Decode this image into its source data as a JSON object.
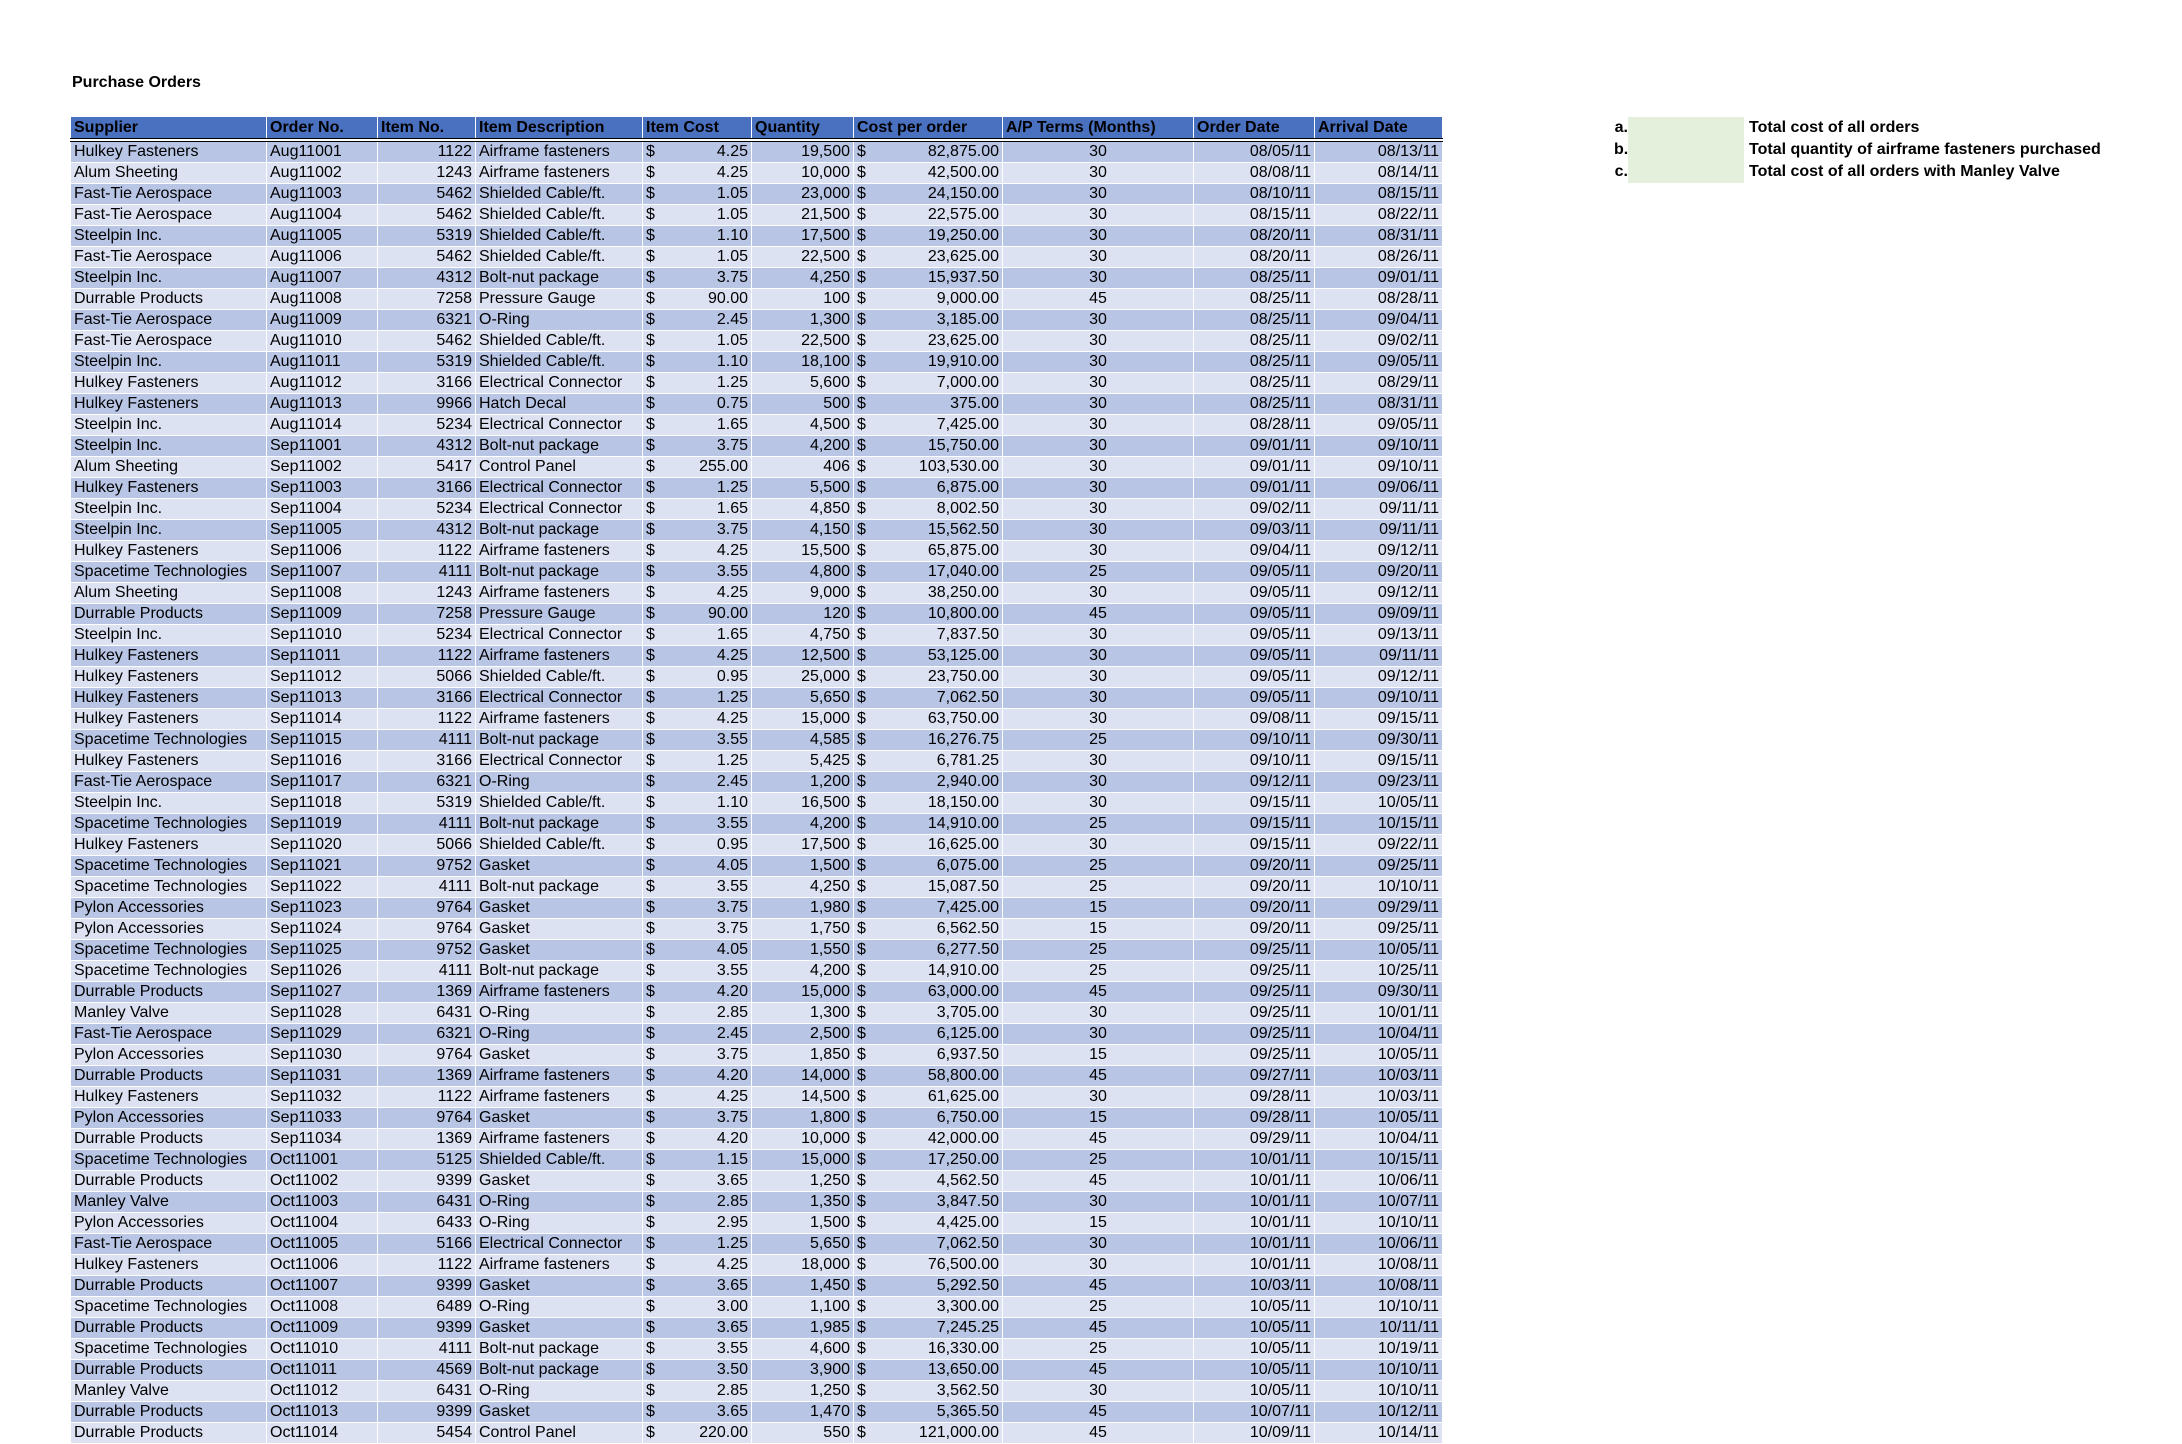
{
  "title": "Purchase Orders",
  "colors": {
    "header": "#4a70c0",
    "row_dark": "#b8c5e5",
    "row_light": "#dce2f2",
    "answer_box": "#e4efdc"
  },
  "columns": [
    "Supplier",
    "Order No.",
    "Item No.",
    "Item Description",
    "Item Cost",
    "Quantity",
    "Cost per order",
    "A/P Terms (Months)",
    "Order Date",
    "Arrival Date"
  ],
  "currency_symbol": "$",
  "rows": [
    [
      "Hulkey Fasteners",
      "Aug11001",
      "1122",
      "Airframe fasteners",
      "4.25",
      "19,500",
      "82,875.00",
      "30",
      "08/05/11",
      "08/13/11"
    ],
    [
      "Alum Sheeting",
      "Aug11002",
      "1243",
      "Airframe fasteners",
      "4.25",
      "10,000",
      "42,500.00",
      "30",
      "08/08/11",
      "08/14/11"
    ],
    [
      "Fast-Tie Aerospace",
      "Aug11003",
      "5462",
      "Shielded Cable/ft.",
      "1.05",
      "23,000",
      "24,150.00",
      "30",
      "08/10/11",
      "08/15/11"
    ],
    [
      "Fast-Tie Aerospace",
      "Aug11004",
      "5462",
      "Shielded Cable/ft.",
      "1.05",
      "21,500",
      "22,575.00",
      "30",
      "08/15/11",
      "08/22/11"
    ],
    [
      "Steelpin Inc.",
      "Aug11005",
      "5319",
      "Shielded Cable/ft.",
      "1.10",
      "17,500",
      "19,250.00",
      "30",
      "08/20/11",
      "08/31/11"
    ],
    [
      "Fast-Tie Aerospace",
      "Aug11006",
      "5462",
      "Shielded Cable/ft.",
      "1.05",
      "22,500",
      "23,625.00",
      "30",
      "08/20/11",
      "08/26/11"
    ],
    [
      "Steelpin Inc.",
      "Aug11007",
      "4312",
      "Bolt-nut package",
      "3.75",
      "4,250",
      "15,937.50",
      "30",
      "08/25/11",
      "09/01/11"
    ],
    [
      "Durrable Products",
      "Aug11008",
      "7258",
      "Pressure Gauge",
      "90.00",
      "100",
      "9,000.00",
      "45",
      "08/25/11",
      "08/28/11"
    ],
    [
      "Fast-Tie Aerospace",
      "Aug11009",
      "6321",
      "O-Ring",
      "2.45",
      "1,300",
      "3,185.00",
      "30",
      "08/25/11",
      "09/04/11"
    ],
    [
      "Fast-Tie Aerospace",
      "Aug11010",
      "5462",
      "Shielded Cable/ft.",
      "1.05",
      "22,500",
      "23,625.00",
      "30",
      "08/25/11",
      "09/02/11"
    ],
    [
      "Steelpin Inc.",
      "Aug11011",
      "5319",
      "Shielded Cable/ft.",
      "1.10",
      "18,100",
      "19,910.00",
      "30",
      "08/25/11",
      "09/05/11"
    ],
    [
      "Hulkey Fasteners",
      "Aug11012",
      "3166",
      "Electrical Connector",
      "1.25",
      "5,600",
      "7,000.00",
      "30",
      "08/25/11",
      "08/29/11"
    ],
    [
      "Hulkey Fasteners",
      "Aug11013",
      "9966",
      "Hatch Decal",
      "0.75",
      "500",
      "375.00",
      "30",
      "08/25/11",
      "08/31/11"
    ],
    [
      "Steelpin Inc.",
      "Aug11014",
      "5234",
      "Electrical Connector",
      "1.65",
      "4,500",
      "7,425.00",
      "30",
      "08/28/11",
      "09/05/11"
    ],
    [
      "Steelpin Inc.",
      "Sep11001",
      "4312",
      "Bolt-nut package",
      "3.75",
      "4,200",
      "15,750.00",
      "30",
      "09/01/11",
      "09/10/11"
    ],
    [
      "Alum Sheeting",
      "Sep11002",
      "5417",
      "Control Panel",
      "255.00",
      "406",
      "103,530.00",
      "30",
      "09/01/11",
      "09/10/11"
    ],
    [
      "Hulkey Fasteners",
      "Sep11003",
      "3166",
      "Electrical Connector",
      "1.25",
      "5,500",
      "6,875.00",
      "30",
      "09/01/11",
      "09/06/11"
    ],
    [
      "Steelpin Inc.",
      "Sep11004",
      "5234",
      "Electrical Connector",
      "1.65",
      "4,850",
      "8,002.50",
      "30",
      "09/02/11",
      "09/11/11"
    ],
    [
      "Steelpin Inc.",
      "Sep11005",
      "4312",
      "Bolt-nut package",
      "3.75",
      "4,150",
      "15,562.50",
      "30",
      "09/03/11",
      "09/11/11"
    ],
    [
      "Hulkey Fasteners",
      "Sep11006",
      "1122",
      "Airframe fasteners",
      "4.25",
      "15,500",
      "65,875.00",
      "30",
      "09/04/11",
      "09/12/11"
    ],
    [
      "Spacetime Technologies",
      "Sep11007",
      "4111",
      "Bolt-nut package",
      "3.55",
      "4,800",
      "17,040.00",
      "25",
      "09/05/11",
      "09/20/11"
    ],
    [
      "Alum Sheeting",
      "Sep11008",
      "1243",
      "Airframe fasteners",
      "4.25",
      "9,000",
      "38,250.00",
      "30",
      "09/05/11",
      "09/12/11"
    ],
    [
      "Durrable Products",
      "Sep11009",
      "7258",
      "Pressure Gauge",
      "90.00",
      "120",
      "10,800.00",
      "45",
      "09/05/11",
      "09/09/11"
    ],
    [
      "Steelpin Inc.",
      "Sep11010",
      "5234",
      "Electrical Connector",
      "1.65",
      "4,750",
      "7,837.50",
      "30",
      "09/05/11",
      "09/13/11"
    ],
    [
      "Hulkey Fasteners",
      "Sep11011",
      "1122",
      "Airframe fasteners",
      "4.25",
      "12,500",
      "53,125.00",
      "30",
      "09/05/11",
      "09/11/11"
    ],
    [
      "Hulkey Fasteners",
      "Sep11012",
      "5066",
      "Shielded Cable/ft.",
      "0.95",
      "25,000",
      "23,750.00",
      "30",
      "09/05/11",
      "09/12/11"
    ],
    [
      "Hulkey Fasteners",
      "Sep11013",
      "3166",
      "Electrical Connector",
      "1.25",
      "5,650",
      "7,062.50",
      "30",
      "09/05/11",
      "09/10/11"
    ],
    [
      "Hulkey Fasteners",
      "Sep11014",
      "1122",
      "Airframe fasteners",
      "4.25",
      "15,000",
      "63,750.00",
      "30",
      "09/08/11",
      "09/15/11"
    ],
    [
      "Spacetime Technologies",
      "Sep11015",
      "4111",
      "Bolt-nut package",
      "3.55",
      "4,585",
      "16,276.75",
      "25",
      "09/10/11",
      "09/30/11"
    ],
    [
      "Hulkey Fasteners",
      "Sep11016",
      "3166",
      "Electrical Connector",
      "1.25",
      "5,425",
      "6,781.25",
      "30",
      "09/10/11",
      "09/15/11"
    ],
    [
      "Fast-Tie Aerospace",
      "Sep11017",
      "6321",
      "O-Ring",
      "2.45",
      "1,200",
      "2,940.00",
      "30",
      "09/12/11",
      "09/23/11"
    ],
    [
      "Steelpin Inc.",
      "Sep11018",
      "5319",
      "Shielded Cable/ft.",
      "1.10",
      "16,500",
      "18,150.00",
      "30",
      "09/15/11",
      "10/05/11"
    ],
    [
      "Spacetime Technologies",
      "Sep11019",
      "4111",
      "Bolt-nut package",
      "3.55",
      "4,200",
      "14,910.00",
      "25",
      "09/15/11",
      "10/15/11"
    ],
    [
      "Hulkey Fasteners",
      "Sep11020",
      "5066",
      "Shielded Cable/ft.",
      "0.95",
      "17,500",
      "16,625.00",
      "30",
      "09/15/11",
      "09/22/11"
    ],
    [
      "Spacetime Technologies",
      "Sep11021",
      "9752",
      "Gasket",
      "4.05",
      "1,500",
      "6,075.00",
      "25",
      "09/20/11",
      "09/25/11"
    ],
    [
      "Spacetime Technologies",
      "Sep11022",
      "4111",
      "Bolt-nut package",
      "3.55",
      "4,250",
      "15,087.50",
      "25",
      "09/20/11",
      "10/10/11"
    ],
    [
      "Pylon Accessories",
      "Sep11023",
      "9764",
      "Gasket",
      "3.75",
      "1,980",
      "7,425.00",
      "15",
      "09/20/11",
      "09/29/11"
    ],
    [
      "Pylon Accessories",
      "Sep11024",
      "9764",
      "Gasket",
      "3.75",
      "1,750",
      "6,562.50",
      "15",
      "09/20/11",
      "09/25/11"
    ],
    [
      "Spacetime Technologies",
      "Sep11025",
      "9752",
      "Gasket",
      "4.05",
      "1,550",
      "6,277.50",
      "25",
      "09/25/11",
      "10/05/11"
    ],
    [
      "Spacetime Technologies",
      "Sep11026",
      "4111",
      "Bolt-nut package",
      "3.55",
      "4,200",
      "14,910.00",
      "25",
      "09/25/11",
      "10/25/11"
    ],
    [
      "Durrable Products",
      "Sep11027",
      "1369",
      "Airframe fasteners",
      "4.20",
      "15,000",
      "63,000.00",
      "45",
      "09/25/11",
      "09/30/11"
    ],
    [
      "Manley Valve",
      "Sep11028",
      "6431",
      "O-Ring",
      "2.85",
      "1,300",
      "3,705.00",
      "30",
      "09/25/11",
      "10/01/11"
    ],
    [
      "Fast-Tie Aerospace",
      "Sep11029",
      "6321",
      "O-Ring",
      "2.45",
      "2,500",
      "6,125.00",
      "30",
      "09/25/11",
      "10/04/11"
    ],
    [
      "Pylon Accessories",
      "Sep11030",
      "9764",
      "Gasket",
      "3.75",
      "1,850",
      "6,937.50",
      "15",
      "09/25/11",
      "10/05/11"
    ],
    [
      "Durrable Products",
      "Sep11031",
      "1369",
      "Airframe fasteners",
      "4.20",
      "14,000",
      "58,800.00",
      "45",
      "09/27/11",
      "10/03/11"
    ],
    [
      "Hulkey Fasteners",
      "Sep11032",
      "1122",
      "Airframe fasteners",
      "4.25",
      "14,500",
      "61,625.00",
      "30",
      "09/28/11",
      "10/03/11"
    ],
    [
      "Pylon Accessories",
      "Sep11033",
      "9764",
      "Gasket",
      "3.75",
      "1,800",
      "6,750.00",
      "15",
      "09/28/11",
      "10/05/11"
    ],
    [
      "Durrable Products",
      "Sep11034",
      "1369",
      "Airframe fasteners",
      "4.20",
      "10,000",
      "42,000.00",
      "45",
      "09/29/11",
      "10/04/11"
    ],
    [
      "Spacetime Technologies",
      "Oct11001",
      "5125",
      "Shielded Cable/ft.",
      "1.15",
      "15,000",
      "17,250.00",
      "25",
      "10/01/11",
      "10/15/11"
    ],
    [
      "Durrable Products",
      "Oct11002",
      "9399",
      "Gasket",
      "3.65",
      "1,250",
      "4,562.50",
      "45",
      "10/01/11",
      "10/06/11"
    ],
    [
      "Manley Valve",
      "Oct11003",
      "6431",
      "O-Ring",
      "2.85",
      "1,350",
      "3,847.50",
      "30",
      "10/01/11",
      "10/07/11"
    ],
    [
      "Pylon Accessories",
      "Oct11004",
      "6433",
      "O-Ring",
      "2.95",
      "1,500",
      "4,425.00",
      "15",
      "10/01/11",
      "10/10/11"
    ],
    [
      "Fast-Tie Aerospace",
      "Oct11005",
      "5166",
      "Electrical Connector",
      "1.25",
      "5,650",
      "7,062.50",
      "30",
      "10/01/11",
      "10/06/11"
    ],
    [
      "Hulkey Fasteners",
      "Oct11006",
      "1122",
      "Airframe fasteners",
      "4.25",
      "18,000",
      "76,500.00",
      "30",
      "10/01/11",
      "10/08/11"
    ],
    [
      "Durrable Products",
      "Oct11007",
      "9399",
      "Gasket",
      "3.65",
      "1,450",
      "5,292.50",
      "45",
      "10/03/11",
      "10/08/11"
    ],
    [
      "Spacetime Technologies",
      "Oct11008",
      "6489",
      "O-Ring",
      "3.00",
      "1,100",
      "3,300.00",
      "25",
      "10/05/11",
      "10/10/11"
    ],
    [
      "Durrable Products",
      "Oct11009",
      "9399",
      "Gasket",
      "3.65",
      "1,985",
      "7,245.25",
      "45",
      "10/05/11",
      "10/11/11"
    ],
    [
      "Spacetime Technologies",
      "Oct11010",
      "4111",
      "Bolt-nut package",
      "3.55",
      "4,600",
      "16,330.00",
      "25",
      "10/05/11",
      "10/19/11"
    ],
    [
      "Durrable Products",
      "Oct11011",
      "4569",
      "Bolt-nut package",
      "3.50",
      "3,900",
      "13,650.00",
      "45",
      "10/05/11",
      "10/10/11"
    ],
    [
      "Manley Valve",
      "Oct11012",
      "6431",
      "O-Ring",
      "2.85",
      "1,250",
      "3,562.50",
      "30",
      "10/05/11",
      "10/10/11"
    ],
    [
      "Durrable Products",
      "Oct11013",
      "9399",
      "Gasket",
      "3.65",
      "1,470",
      "5,365.50",
      "45",
      "10/07/11",
      "10/12/11"
    ],
    [
      "Durrable Products",
      "Oct11014",
      "5454",
      "Control Panel",
      "220.00",
      "550",
      "121,000.00",
      "45",
      "10/09/11",
      "10/14/11"
    ]
  ],
  "questions": [
    {
      "label": "a.",
      "text": "Total cost of all orders",
      "answer": ""
    },
    {
      "label": "b.",
      "text": "Total quantity of airframe fasteners purchased",
      "answer": ""
    },
    {
      "label": "c.",
      "text": "Total cost of all orders with Manley Valve",
      "answer": ""
    }
  ]
}
